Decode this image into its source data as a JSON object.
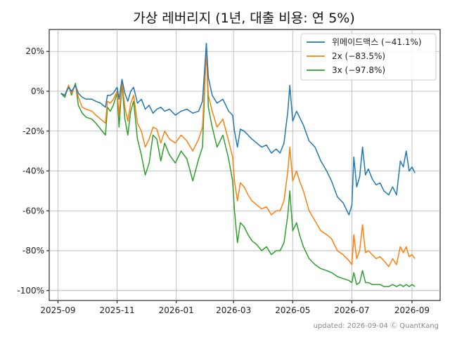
{
  "chart_data": {
    "type": "line",
    "title": "가상 레버리지 (1년, 대출 비용: 연 5%)",
    "xlabel": "",
    "ylabel": "",
    "x_ticks": [
      "2025-09",
      "2025-11",
      "2026-01",
      "2026-03",
      "2026-05",
      "2026-07",
      "2026-09"
    ],
    "y_ticks": [
      "20%",
      "0%",
      "-20%",
      "-40%",
      "-60%",
      "-80%",
      "-100%"
    ],
    "y_tick_values": [
      20,
      0,
      -20,
      -40,
      -60,
      -80,
      -100
    ],
    "x_range": [
      "2025-08-23",
      "2026-09-30"
    ],
    "ylim": [
      -105,
      31
    ],
    "grid": true,
    "legend_position": "top-right",
    "footer": "updated: 2026-09-04 Ⓒ QuantKang",
    "series": [
      {
        "name": "위메이드맥스 (−41.1%)",
        "color": "#1f77b4",
        "points": [
          [
            "2025-09-04",
            -1
          ],
          [
            "2025-09-08",
            -2
          ],
          [
            "2025-09-12",
            2
          ],
          [
            "2025-09-15",
            0
          ],
          [
            "2025-09-19",
            3
          ],
          [
            "2025-09-22",
            -1
          ],
          [
            "2025-09-26",
            -3
          ],
          [
            "2025-09-30",
            -4
          ],
          [
            "2025-10-06",
            -4
          ],
          [
            "2025-10-10",
            -5
          ],
          [
            "2025-10-15",
            -6
          ],
          [
            "2025-10-20",
            -8
          ],
          [
            "2025-10-22",
            -2
          ],
          [
            "2025-10-25",
            -2
          ],
          [
            "2025-10-28",
            -1
          ],
          [
            "2025-11-01",
            2
          ],
          [
            "2025-11-03",
            -4
          ],
          [
            "2025-11-06",
            6
          ],
          [
            "2025-11-09",
            -1
          ],
          [
            "2025-11-12",
            -5
          ],
          [
            "2025-11-15",
            0
          ],
          [
            "2025-11-18",
            2
          ],
          [
            "2025-11-22",
            -6
          ],
          [
            "2025-11-26",
            -4
          ],
          [
            "2025-11-30",
            -9
          ],
          [
            "2025-12-04",
            -7
          ],
          [
            "2025-12-08",
            -11
          ],
          [
            "2025-12-12",
            -9
          ],
          [
            "2025-12-16",
            -8
          ],
          [
            "2025-12-20",
            -10
          ],
          [
            "2025-12-25",
            -9
          ],
          [
            "2025-12-31",
            -12
          ],
          [
            "2026-01-06",
            -10
          ],
          [
            "2026-01-12",
            -9
          ],
          [
            "2026-01-18",
            -11
          ],
          [
            "2026-01-24",
            -10
          ],
          [
            "2026-01-28",
            -5
          ],
          [
            "2026-02-01",
            24
          ],
          [
            "2026-02-03",
            7
          ],
          [
            "2026-02-07",
            -2
          ],
          [
            "2026-02-12",
            -6
          ],
          [
            "2026-02-18",
            -4
          ],
          [
            "2026-02-24",
            -10
          ],
          [
            "2026-02-28",
            -12
          ],
          [
            "2026-03-02",
            -20
          ],
          [
            "2026-03-05",
            -28
          ],
          [
            "2026-03-08",
            -19
          ],
          [
            "2026-03-12",
            -20
          ],
          [
            "2026-03-16",
            -22
          ],
          [
            "2026-03-20",
            -24
          ],
          [
            "2026-03-25",
            -26
          ],
          [
            "2026-03-30",
            -28
          ],
          [
            "2026-04-04",
            -27
          ],
          [
            "2026-04-09",
            -31
          ],
          [
            "2026-04-14",
            -29
          ],
          [
            "2026-04-18",
            -31
          ],
          [
            "2026-04-22",
            -26
          ],
          [
            "2026-04-26",
            -10
          ],
          [
            "2026-04-28",
            3
          ],
          [
            "2026-05-01",
            -15
          ],
          [
            "2026-05-05",
            -10
          ],
          [
            "2026-05-08",
            -13
          ],
          [
            "2026-05-12",
            -17
          ],
          [
            "2026-05-18",
            -25
          ],
          [
            "2026-05-24",
            -28
          ],
          [
            "2026-05-30",
            -35
          ],
          [
            "2026-06-05",
            -40
          ],
          [
            "2026-06-10",
            -45
          ],
          [
            "2026-06-16",
            -53
          ],
          [
            "2026-06-22",
            -56
          ],
          [
            "2026-06-28",
            -62
          ],
          [
            "2026-07-01",
            -57
          ],
          [
            "2026-07-03",
            -33
          ],
          [
            "2026-07-06",
            -48
          ],
          [
            "2026-07-09",
            -43
          ],
          [
            "2026-07-12",
            -28
          ],
          [
            "2026-07-15",
            -42
          ],
          [
            "2026-07-18",
            -39
          ],
          [
            "2026-07-22",
            -44
          ],
          [
            "2026-07-26",
            -47
          ],
          [
            "2026-07-30",
            -46
          ],
          [
            "2026-08-03",
            -50
          ],
          [
            "2026-08-08",
            -52
          ],
          [
            "2026-08-12",
            -48
          ],
          [
            "2026-08-16",
            -52
          ],
          [
            "2026-08-20",
            -35
          ],
          [
            "2026-08-23",
            -38
          ],
          [
            "2026-08-26",
            -30
          ],
          [
            "2026-08-29",
            -40
          ],
          [
            "2026-09-01",
            -38
          ],
          [
            "2026-09-04",
            -41
          ]
        ]
      },
      {
        "name": "2x (−83.5%)",
        "color": "#ff7f0e",
        "points": [
          [
            "2025-09-04",
            -1
          ],
          [
            "2025-09-08",
            -2
          ],
          [
            "2025-09-12",
            3
          ],
          [
            "2025-09-15",
            -1
          ],
          [
            "2025-09-19",
            3
          ],
          [
            "2025-09-22",
            -3
          ],
          [
            "2025-09-26",
            -8
          ],
          [
            "2025-09-30",
            -9
          ],
          [
            "2025-10-06",
            -10
          ],
          [
            "2025-10-10",
            -12
          ],
          [
            "2025-10-15",
            -14
          ],
          [
            "2025-10-20",
            -16
          ],
          [
            "2025-10-22",
            -5
          ],
          [
            "2025-10-25",
            -6
          ],
          [
            "2025-10-28",
            -4
          ],
          [
            "2025-11-01",
            0
          ],
          [
            "2025-11-03",
            -12
          ],
          [
            "2025-11-06",
            5
          ],
          [
            "2025-11-09",
            -8
          ],
          [
            "2025-11-12",
            -15
          ],
          [
            "2025-11-15",
            -6
          ],
          [
            "2025-11-18",
            -2
          ],
          [
            "2025-11-22",
            -16
          ],
          [
            "2025-11-26",
            -20
          ],
          [
            "2025-11-30",
            -28
          ],
          [
            "2025-12-04",
            -24
          ],
          [
            "2025-12-08",
            -18
          ],
          [
            "2025-12-12",
            -19
          ],
          [
            "2025-12-16",
            -26
          ],
          [
            "2025-12-20",
            -20
          ],
          [
            "2025-12-25",
            -24
          ],
          [
            "2025-12-31",
            -26
          ],
          [
            "2026-01-06",
            -22
          ],
          [
            "2026-01-12",
            -25
          ],
          [
            "2026-01-18",
            -30
          ],
          [
            "2026-01-24",
            -24
          ],
          [
            "2026-01-28",
            -18
          ],
          [
            "2026-02-01",
            20
          ],
          [
            "2026-02-03",
            -2
          ],
          [
            "2026-02-07",
            -10
          ],
          [
            "2026-02-12",
            -18
          ],
          [
            "2026-02-18",
            -14
          ],
          [
            "2026-02-24",
            -25
          ],
          [
            "2026-02-28",
            -33
          ],
          [
            "2026-03-02",
            -45
          ],
          [
            "2026-03-05",
            -55
          ],
          [
            "2026-03-08",
            -46
          ],
          [
            "2026-03-12",
            -48
          ],
          [
            "2026-03-16",
            -52
          ],
          [
            "2026-03-20",
            -55
          ],
          [
            "2026-03-25",
            -57
          ],
          [
            "2026-03-30",
            -59
          ],
          [
            "2026-04-04",
            -58
          ],
          [
            "2026-04-09",
            -62
          ],
          [
            "2026-04-14",
            -60
          ],
          [
            "2026-04-18",
            -60
          ],
          [
            "2026-04-22",
            -55
          ],
          [
            "2026-04-26",
            -40
          ],
          [
            "2026-04-28",
            -28
          ],
          [
            "2026-05-01",
            -45
          ],
          [
            "2026-05-05",
            -40
          ],
          [
            "2026-05-08",
            -45
          ],
          [
            "2026-05-12",
            -50
          ],
          [
            "2026-05-18",
            -60
          ],
          [
            "2026-05-24",
            -65
          ],
          [
            "2026-05-30",
            -70
          ],
          [
            "2026-06-05",
            -72
          ],
          [
            "2026-06-10",
            -74
          ],
          [
            "2026-06-16",
            -80
          ],
          [
            "2026-06-22",
            -82
          ],
          [
            "2026-06-28",
            -85
          ],
          [
            "2026-07-01",
            -87
          ],
          [
            "2026-07-03",
            -72
          ],
          [
            "2026-07-06",
            -84
          ],
          [
            "2026-07-09",
            -80
          ],
          [
            "2026-07-12",
            -67
          ],
          [
            "2026-07-15",
            -81
          ],
          [
            "2026-07-18",
            -80
          ],
          [
            "2026-07-22",
            -82
          ],
          [
            "2026-07-26",
            -84
          ],
          [
            "2026-07-30",
            -83
          ],
          [
            "2026-08-03",
            -85
          ],
          [
            "2026-08-08",
            -88
          ],
          [
            "2026-08-12",
            -84
          ],
          [
            "2026-08-16",
            -87
          ],
          [
            "2026-08-20",
            -78
          ],
          [
            "2026-08-23",
            -81
          ],
          [
            "2026-08-26",
            -78
          ],
          [
            "2026-08-29",
            -83
          ],
          [
            "2026-09-01",
            -82
          ],
          [
            "2026-09-04",
            -84
          ]
        ]
      },
      {
        "name": "3x (−97.8%)",
        "color": "#2ca02c",
        "points": [
          [
            "2025-09-04",
            -1
          ],
          [
            "2025-09-08",
            -3
          ],
          [
            "2025-09-12",
            3
          ],
          [
            "2025-09-15",
            -2
          ],
          [
            "2025-09-19",
            4
          ],
          [
            "2025-09-22",
            -7
          ],
          [
            "2025-09-26",
            -11
          ],
          [
            "2025-09-30",
            -13
          ],
          [
            "2025-10-06",
            -14
          ],
          [
            "2025-10-10",
            -16
          ],
          [
            "2025-10-15",
            -19
          ],
          [
            "2025-10-20",
            -22
          ],
          [
            "2025-10-22",
            -8
          ],
          [
            "2025-10-25",
            -10
          ],
          [
            "2025-10-28",
            -7
          ],
          [
            "2025-11-01",
            -1
          ],
          [
            "2025-11-03",
            -18
          ],
          [
            "2025-11-06",
            4
          ],
          [
            "2025-11-09",
            -14
          ],
          [
            "2025-11-12",
            -22
          ],
          [
            "2025-11-15",
            -10
          ],
          [
            "2025-11-18",
            -5
          ],
          [
            "2025-11-22",
            -24
          ],
          [
            "2025-11-26",
            -32
          ],
          [
            "2025-11-30",
            -42
          ],
          [
            "2025-12-04",
            -36
          ],
          [
            "2025-12-08",
            -22
          ],
          [
            "2025-12-12",
            -24
          ],
          [
            "2025-12-16",
            -35
          ],
          [
            "2025-12-20",
            -26
          ],
          [
            "2025-12-25",
            -32
          ],
          [
            "2025-12-31",
            -36
          ],
          [
            "2026-01-06",
            -30
          ],
          [
            "2026-01-12",
            -34
          ],
          [
            "2026-01-18",
            -45
          ],
          [
            "2026-01-24",
            -34
          ],
          [
            "2026-01-28",
            -28
          ],
          [
            "2026-02-01",
            24
          ],
          [
            "2026-02-03",
            -8
          ],
          [
            "2026-02-07",
            -18
          ],
          [
            "2026-02-12",
            -28
          ],
          [
            "2026-02-18",
            -22
          ],
          [
            "2026-02-24",
            -34
          ],
          [
            "2026-02-28",
            -45
          ],
          [
            "2026-03-02",
            -60
          ],
          [
            "2026-03-05",
            -76
          ],
          [
            "2026-03-08",
            -66
          ],
          [
            "2026-03-12",
            -68
          ],
          [
            "2026-03-16",
            -72
          ],
          [
            "2026-03-20",
            -75
          ],
          [
            "2026-03-25",
            -77
          ],
          [
            "2026-03-30",
            -80
          ],
          [
            "2026-04-04",
            -78
          ],
          [
            "2026-04-09",
            -82
          ],
          [
            "2026-04-14",
            -80
          ],
          [
            "2026-04-18",
            -80
          ],
          [
            "2026-04-22",
            -76
          ],
          [
            "2026-04-26",
            -62
          ],
          [
            "2026-04-28",
            -50
          ],
          [
            "2026-05-01",
            -70
          ],
          [
            "2026-05-05",
            -66
          ],
          [
            "2026-05-08",
            -72
          ],
          [
            "2026-05-12",
            -78
          ],
          [
            "2026-05-18",
            -84
          ],
          [
            "2026-05-24",
            -87
          ],
          [
            "2026-05-30",
            -89
          ],
          [
            "2026-06-05",
            -90
          ],
          [
            "2026-06-10",
            -91
          ],
          [
            "2026-06-16",
            -93
          ],
          [
            "2026-06-22",
            -94
          ],
          [
            "2026-06-28",
            -95
          ],
          [
            "2026-07-01",
            -96
          ],
          [
            "2026-07-03",
            -91
          ],
          [
            "2026-07-06",
            -97
          ],
          [
            "2026-07-09",
            -96
          ],
          [
            "2026-07-12",
            -90
          ],
          [
            "2026-07-15",
            -96
          ],
          [
            "2026-07-18",
            -96
          ],
          [
            "2026-07-22",
            -97
          ],
          [
            "2026-07-26",
            -97
          ],
          [
            "2026-07-30",
            -97
          ],
          [
            "2026-08-03",
            -98
          ],
          [
            "2026-08-08",
            -98
          ],
          [
            "2026-08-12",
            -97
          ],
          [
            "2026-08-16",
            -98
          ],
          [
            "2026-08-20",
            -97
          ],
          [
            "2026-08-23",
            -98
          ],
          [
            "2026-08-26",
            -97
          ],
          [
            "2026-08-29",
            -98
          ],
          [
            "2026-09-01",
            -97
          ],
          [
            "2026-09-04",
            -98
          ]
        ]
      }
    ]
  }
}
